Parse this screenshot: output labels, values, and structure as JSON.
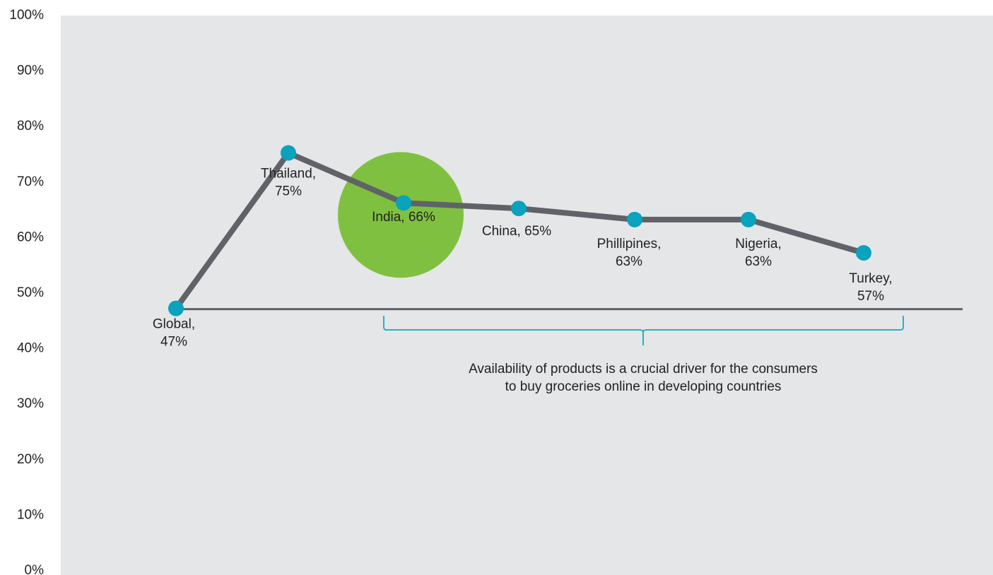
{
  "chart_data": {
    "type": "line",
    "title": "",
    "xlabel": "",
    "ylabel": "",
    "ylim": [
      0,
      100
    ],
    "yticks": [
      "0%",
      "10%",
      "20%",
      "30%",
      "40%",
      "50%",
      "60%",
      "70%",
      "80%",
      "90%",
      "100%"
    ],
    "grid": false,
    "legend": "none",
    "categories": [
      "Global",
      "Thailand",
      "India",
      "China",
      "Phillipines",
      "Nigeria",
      "Turkey"
    ],
    "values": [
      47,
      75,
      66,
      65,
      63,
      63,
      57
    ],
    "point_labels": [
      [
        "Global,",
        "47%"
      ],
      [
        "Thailand,",
        "75%"
      ],
      [
        "India, 66%"
      ],
      [
        "China, 65%"
      ],
      [
        "Phillipines,",
        "63%"
      ],
      [
        "Nigeria,",
        "63%"
      ],
      [
        "Turkey,",
        "57%"
      ]
    ],
    "reference_line": 47,
    "highlight": "India",
    "annotation": {
      "lines": [
        "Availability of products is a crucial driver for the consumers",
        "to buy groceries online in developing countries"
      ],
      "bracket_from": "India",
      "bracket_to": "Turkey"
    },
    "colors": {
      "plot_background": "#e5e6e8",
      "line": "#5f6368",
      "marker": "#0aa2bc",
      "highlight_circle": "#80c040",
      "bracket": "#22b3c7"
    }
  }
}
